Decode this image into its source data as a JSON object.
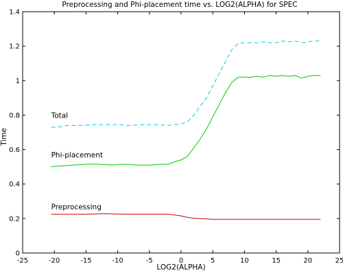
{
  "chart_data": {
    "type": "line",
    "title": "Preprocessing and Phi-placement time vs. LOG2(ALPHA) for SPEC",
    "xlabel": "LOG2(ALPHA)",
    "ylabel": "Time",
    "xlim": [
      -25,
      25
    ],
    "ylim": [
      0,
      1.4
    ],
    "xticks": [
      "-25",
      "-20",
      "-15",
      "-10",
      "-5",
      "0",
      "5",
      "10",
      "15",
      "20",
      "25"
    ],
    "yticks": [
      "0",
      "0.2",
      "0.4",
      "0.6",
      "0.8",
      "1",
      "1.2",
      "1.4"
    ],
    "grid": false,
    "legend": "none",
    "series": [
      {
        "name": "Total",
        "color": "#00ccdd",
        "dash": "dashed",
        "label_anchor": [
          -20.5,
          0.8
        ],
        "x": [
          -20.5,
          -19.5,
          -18,
          -16,
          -14,
          -12,
          -10,
          -8,
          -6,
          -4,
          -2,
          0,
          1,
          2,
          3,
          4,
          5,
          6,
          7,
          8,
          9,
          10,
          11,
          12,
          13,
          14,
          15,
          16,
          17,
          18,
          19,
          20,
          21,
          22
        ],
        "y": [
          0.73,
          0.73,
          0.74,
          0.74,
          0.745,
          0.745,
          0.745,
          0.74,
          0.745,
          0.745,
          0.74,
          0.75,
          0.76,
          0.8,
          0.85,
          0.9,
          0.97,
          1.04,
          1.11,
          1.18,
          1.215,
          1.22,
          1.22,
          1.22,
          1.225,
          1.22,
          1.22,
          1.23,
          1.225,
          1.23,
          1.22,
          1.225,
          1.23,
          1.23
        ]
      },
      {
        "name": "Phi-placement",
        "color": "#00cc00",
        "dash": "solid",
        "label_anchor": [
          -20.5,
          0.57
        ],
        "x": [
          -20.5,
          -19,
          -17,
          -15,
          -13,
          -11,
          -9,
          -7,
          -5,
          -3,
          -2,
          -1,
          0,
          1,
          2,
          3,
          4,
          5,
          6,
          7,
          8,
          9,
          10,
          11,
          12,
          13,
          14,
          15,
          16,
          17,
          18,
          19,
          20,
          21,
          22
        ],
        "y": [
          0.5,
          0.505,
          0.51,
          0.515,
          0.515,
          0.51,
          0.515,
          0.51,
          0.51,
          0.515,
          0.515,
          0.53,
          0.54,
          0.56,
          0.61,
          0.66,
          0.72,
          0.79,
          0.86,
          0.93,
          0.99,
          1.02,
          1.02,
          1.02,
          1.025,
          1.02,
          1.03,
          1.025,
          1.03,
          1.025,
          1.03,
          1.015,
          1.025,
          1.03,
          1.03
        ]
      },
      {
        "name": "Preprocessing",
        "color": "#cc0000",
        "dash": "solid",
        "label_anchor": [
          -20.5,
          0.27
        ],
        "x": [
          -20.5,
          -18,
          -15,
          -12,
          -10,
          -8,
          -6,
          -4,
          -2,
          -1,
          0,
          1,
          2,
          3,
          4,
          5,
          8,
          12,
          16,
          20,
          22
        ],
        "y": [
          0.225,
          0.225,
          0.225,
          0.228,
          0.226,
          0.225,
          0.225,
          0.225,
          0.225,
          0.22,
          0.215,
          0.207,
          0.202,
          0.2,
          0.198,
          0.195,
          0.195,
          0.195,
          0.195,
          0.195,
          0.195
        ]
      }
    ]
  }
}
